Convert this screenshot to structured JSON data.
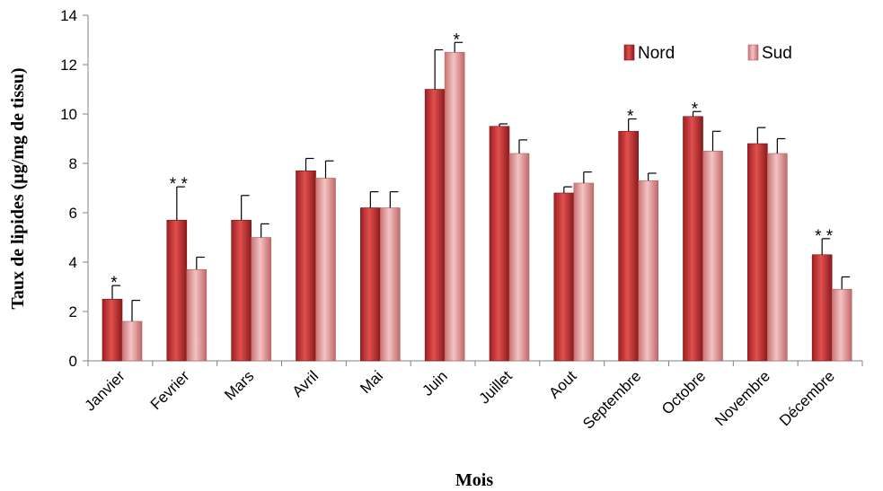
{
  "chart_data": {
    "type": "bar",
    "xlabel": "Mois",
    "ylabel": "Taux de lipides (µg/mg de tissu)",
    "ylim": [
      0,
      14
    ],
    "yticks": [
      0,
      2,
      4,
      6,
      8,
      10,
      12,
      14
    ],
    "categories": [
      "Janvier",
      "Fevrier",
      "Mars",
      "Avril",
      "Mai",
      "Juin",
      "Juillet",
      "Aout",
      "Septembre",
      "Octobre",
      "Novembre",
      "Décembre"
    ],
    "series": [
      {
        "name": "Nord",
        "color": "#c0393b",
        "values": [
          2.5,
          5.7,
          5.7,
          7.7,
          6.2,
          11.0,
          9.5,
          6.8,
          9.3,
          9.9,
          8.8,
          4.3
        ],
        "errors": [
          0.55,
          1.35,
          1.0,
          0.5,
          0.65,
          1.6,
          0.1,
          0.25,
          0.5,
          0.2,
          0.65,
          0.65
        ]
      },
      {
        "name": "Sud",
        "color": "#e8a2a2",
        "values": [
          1.6,
          3.7,
          5.0,
          7.4,
          6.2,
          12.5,
          8.4,
          7.2,
          7.3,
          8.5,
          8.4,
          2.9
        ],
        "errors": [
          0.85,
          0.5,
          0.55,
          0.7,
          0.65,
          0.4,
          0.55,
          0.45,
          0.3,
          0.8,
          0.6,
          0.5
        ]
      }
    ],
    "annotations": [
      "*",
      "* *",
      "",
      "",
      "",
      "*",
      "",
      "",
      "*",
      "*",
      "",
      "* *"
    ],
    "annotation_series": [
      0,
      0,
      null,
      null,
      null,
      1,
      null,
      null,
      0,
      0,
      null,
      0
    ],
    "legend_position": "top-right",
    "grid": false
  }
}
